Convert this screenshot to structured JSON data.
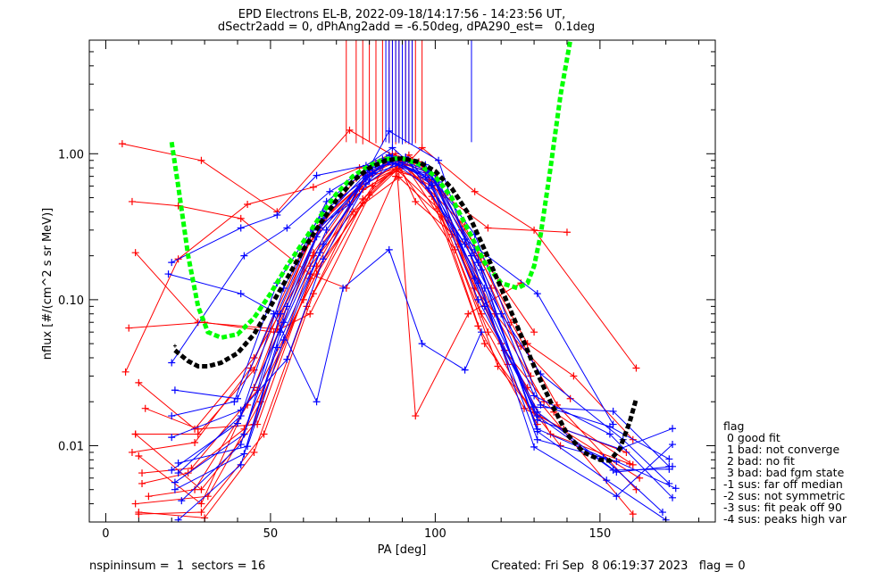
{
  "title_line1": "EPD Electrons EL-B, 2022-09-18/14:17:56 - 14:23:56 UT,",
  "title_line2": "dSectr2add = 0, dPhAng2add = -6.50deg, dPA290_est=   0.1deg",
  "footer_left": "nspininsum =  1  sectors = 16",
  "footer_right": "Created: Fri Sep  8 06:19:37 2023   flag = 0",
  "legend": {
    "title": "flag",
    "items": [
      " 0 good fit",
      " 1 bad: not converge",
      " 2 bad: no fit",
      " 3 bad: bad fgm state",
      "-1 sus: far off median",
      "-2 sus: not symmetric",
      "-3 sus: fit peak off 90",
      "-4 sus: peaks high var"
    ]
  },
  "colors": {
    "red": "#ff0000",
    "blue": "#0000ff",
    "green": "#00ff00",
    "black": "#000000"
  },
  "chart_data": {
    "type": "line",
    "xlabel": "PA [deg]",
    "ylabel": "nflux [#/(cm^2 s sr MeV)]",
    "x_scale": "linear",
    "y_scale": "log",
    "xlim": [
      -5,
      185
    ],
    "ylim": [
      0.003,
      6.0
    ],
    "x_ticks": [
      0,
      50,
      100,
      150
    ],
    "x_tick_labels": [
      "0",
      "50",
      "100",
      "150"
    ],
    "y_ticks": [
      0.01,
      0.1,
      1.0
    ],
    "y_tick_labels": [
      "0.01",
      "0.10",
      "1.00"
    ],
    "series": [
      {
        "color": "red",
        "x": [
          5,
          29,
          52,
          74,
          88,
          94,
          113,
          128,
          142,
          160
        ],
        "y": [
          1.17,
          0.9,
          0.4,
          1.45,
          0.95,
          0.47,
          0.2,
          0.05,
          0.03,
          0.011
        ]
      },
      {
        "color": "red",
        "x": [
          8,
          22,
          41,
          62,
          73,
          88,
          96,
          112,
          130,
          161
        ],
        "y": [
          0.47,
          0.44,
          0.36,
          0.15,
          0.12,
          0.7,
          1.1,
          0.55,
          0.3,
          0.034
        ]
      },
      {
        "color": "red",
        "x": [
          9,
          28,
          52,
          67,
          88,
          94,
          110,
          126
        ],
        "y": [
          0.21,
          0.07,
          0.063,
          0.38,
          1.0,
          0.016,
          0.08,
          0.13
        ]
      },
      {
        "color": "red",
        "x": [
          7,
          30,
          51,
          62,
          85,
          99,
          116,
          140
        ],
        "y": [
          0.064,
          0.07,
          0.06,
          0.08,
          0.87,
          0.6,
          0.31,
          0.29
        ]
      },
      {
        "color": "red",
        "x": [
          6,
          22,
          43,
          63,
          77,
          87,
          97,
          114,
          130
        ],
        "y": [
          0.032,
          0.19,
          0.45,
          0.59,
          0.8,
          1.0,
          0.8,
          0.2,
          0.06
        ]
      },
      {
        "color": "red",
        "x": [
          10,
          27,
          45,
          63,
          78,
          88,
          98,
          112,
          126,
          141
        ],
        "y": [
          0.027,
          0.013,
          0.04,
          0.2,
          0.57,
          0.76,
          0.66,
          0.12,
          0.048,
          0.021
        ]
      },
      {
        "color": "red",
        "x": [
          9,
          29,
          45,
          62,
          78,
          90,
          99,
          113,
          127,
          139,
          158
        ],
        "y": [
          0.012,
          0.005,
          0.014,
          0.17,
          0.49,
          0.88,
          0.51,
          0.066,
          0.018,
          0.013,
          0.009
        ]
      },
      {
        "color": "red",
        "x": [
          10,
          29,
          45,
          63,
          77,
          91,
          100,
          114,
          128,
          160
        ],
        "y": [
          0.0085,
          0.004,
          0.025,
          0.21,
          0.6,
          0.84,
          0.73,
          0.08,
          0.025,
          0.0034
        ]
      },
      {
        "color": "red",
        "x": [
          11,
          25,
          42,
          60,
          76,
          88,
          101,
          115,
          130,
          162
        ],
        "y": [
          0.0055,
          0.0065,
          0.013,
          0.1,
          0.52,
          0.79,
          0.42,
          0.05,
          0.017,
          0.006
        ]
      },
      {
        "color": "red",
        "x": [
          10,
          30,
          45,
          61,
          75,
          89,
          102,
          116,
          131
        ],
        "y": [
          0.0035,
          0.0032,
          0.009,
          0.09,
          0.4,
          0.69,
          0.37,
          0.06,
          0.014
        ]
      },
      {
        "color": "red",
        "x": [
          12,
          28,
          46,
          62,
          80,
          92,
          103,
          117,
          129
        ],
        "y": [
          0.018,
          0.013,
          0.014,
          0.14,
          0.52,
          0.98,
          0.52,
          0.12,
          0.03
        ]
      },
      {
        "color": "red",
        "x": [
          9,
          31,
          47,
          64,
          79,
          91,
          104,
          118,
          133
        ],
        "y": [
          0.004,
          0.0045,
          0.02,
          0.17,
          0.71,
          0.94,
          0.35,
          0.08,
          0.02
        ]
      },
      {
        "color": "red",
        "x": [
          8,
          27,
          44,
          60,
          77,
          90,
          105,
          120,
          135,
          159
        ],
        "y": [
          0.009,
          0.0105,
          0.034,
          0.22,
          0.58,
          0.89,
          0.28,
          0.05,
          0.012,
          0.0075
        ]
      },
      {
        "color": "red",
        "x": [
          10,
          29,
          48,
          63,
          78,
          89,
          106,
          119,
          138
        ],
        "y": [
          0.0034,
          0.0035,
          0.012,
          0.11,
          0.46,
          0.8,
          0.22,
          0.035,
          0.01
        ]
      },
      {
        "color": "red",
        "x": [
          11,
          26,
          46,
          64,
          81,
          93,
          107,
          121,
          136,
          160
        ],
        "y": [
          0.0065,
          0.007,
          0.024,
          0.15,
          0.6,
          0.9,
          0.24,
          0.045,
          0.017,
          0.0074
        ]
      },
      {
        "color": "red",
        "x": [
          13,
          27,
          43,
          63,
          80,
          95,
          108,
          122
        ],
        "y": [
          0.0045,
          0.005,
          0.019,
          0.3,
          0.7,
          0.88,
          0.3,
          0.036
        ]
      },
      {
        "color": "red",
        "x": [
          9,
          28,
          45,
          62,
          76,
          89,
          109,
          123,
          137,
          161
        ],
        "y": [
          0.012,
          0.012,
          0.033,
          0.25,
          0.68,
          0.92,
          0.32,
          0.07,
          0.019,
          0.005
        ]
      },
      {
        "color": "blue",
        "x": [
          20,
          41,
          52,
          64,
          79,
          87,
          99,
          112,
          131,
          155,
          172
        ],
        "y": [
          0.18,
          0.31,
          0.38,
          0.71,
          0.83,
          1.1,
          0.63,
          0.14,
          0.017,
          0.0066,
          0.0072
        ]
      },
      {
        "color": "blue",
        "x": [
          19,
          41,
          52,
          63,
          74,
          86,
          101,
          109,
          131,
          154
        ],
        "y": [
          0.15,
          0.11,
          0.08,
          0.3,
          0.45,
          1.43,
          0.9,
          0.26,
          0.11,
          0.014
        ]
      },
      {
        "color": "blue",
        "x": [
          20,
          42,
          55,
          68,
          84,
          91,
          109,
          120,
          132,
          157,
          171
        ],
        "y": [
          0.037,
          0.2,
          0.31,
          0.55,
          0.92,
          0.95,
          0.24,
          0.08,
          0.031,
          0.011,
          0.0055
        ]
      },
      {
        "color": "blue",
        "x": [
          21,
          40,
          51,
          64,
          72,
          86,
          96,
          109,
          114
        ],
        "y": [
          0.024,
          0.021,
          0.08,
          0.02,
          0.12,
          0.22,
          0.05,
          0.033,
          0.06
        ]
      },
      {
        "color": "blue",
        "x": [
          20,
          39,
          52,
          66,
          81,
          88,
          97,
          112,
          130,
          153,
          172
        ],
        "y": [
          0.016,
          0.02,
          0.13,
          0.4,
          0.74,
          0.92,
          0.84,
          0.22,
          0.022,
          0.012,
          0.0044
        ]
      },
      {
        "color": "blue",
        "x": [
          22,
          41,
          54,
          67,
          82,
          86,
          98,
          114,
          131,
          151,
          169
        ],
        "y": [
          0.0065,
          0.016,
          0.12,
          0.47,
          0.86,
          0.98,
          0.76,
          0.16,
          0.013,
          0.0083,
          0.0035
        ]
      },
      {
        "color": "blue",
        "x": [
          21,
          42,
          55,
          66,
          80,
          87,
          99,
          113,
          131,
          155,
          173
        ],
        "y": [
          0.0056,
          0.012,
          0.09,
          0.36,
          0.77,
          0.87,
          0.71,
          0.13,
          0.011,
          0.0078,
          0.0051
        ]
      },
      {
        "color": "blue",
        "x": [
          23,
          41,
          53,
          65,
          81,
          89,
          100,
          115,
          131,
          154,
          171
        ],
        "y": [
          0.0042,
          0.0102,
          0.08,
          0.31,
          0.73,
          0.84,
          0.67,
          0.09,
          0.016,
          0.0068,
          0.0069
        ]
      },
      {
        "color": "blue",
        "x": [
          20,
          40,
          54,
          64,
          79,
          87,
          97,
          111,
          130,
          155,
          172
        ],
        "y": [
          0.0068,
          0.0142,
          0.07,
          0.27,
          0.7,
          0.93,
          0.69,
          0.2,
          0.0098,
          0.0045,
          0.0102
        ]
      },
      {
        "color": "blue",
        "x": [
          22,
          41,
          52,
          66,
          80,
          86,
          101,
          113,
          131,
          152,
          170
        ],
        "y": [
          0.0031,
          0.0074,
          0.047,
          0.24,
          0.66,
          0.88,
          0.64,
          0.18,
          0.0125,
          0.0058,
          0.0031
        ]
      },
      {
        "color": "blue",
        "x": [
          21,
          42,
          53,
          67,
          81,
          90,
          98,
          112,
          132,
          153,
          171
        ],
        "y": [
          0.005,
          0.0088,
          0.06,
          0.3,
          0.81,
          0.87,
          0.74,
          0.28,
          0.019,
          0.0135,
          0.0081
        ]
      },
      {
        "color": "blue",
        "x": [
          20,
          41,
          55,
          66,
          79,
          88,
          98,
          115,
          131,
          156,
          172
        ],
        "y": [
          0.0114,
          0.0175,
          0.039,
          0.19,
          0.62,
          0.86,
          0.58,
          0.12,
          0.015,
          0.0095,
          0.0131
        ]
      },
      {
        "color": "blue",
        "x": [
          22,
          43,
          54,
          65,
          79,
          87,
          99,
          113,
          130,
          154,
          171
        ],
        "y": [
          0.0076,
          0.0099,
          0.053,
          0.21,
          0.68,
          0.96,
          0.61,
          0.1,
          0.0184,
          0.0172,
          0.0072
        ]
      }
    ],
    "stick_lines": [
      {
        "color": "red",
        "x": [
          73,
          76,
          78,
          80,
          82,
          84,
          86,
          87,
          88,
          89,
          91,
          92,
          93,
          94,
          96
        ]
      },
      {
        "color": "blue",
        "x": [
          85,
          86,
          87,
          88,
          89,
          90,
          91,
          92,
          93,
          111
        ]
      }
    ],
    "fit_curves": [
      {
        "color": "green",
        "style": "dashed",
        "x": [
          20,
          22,
          25,
          28,
          31,
          35,
          40,
          45,
          50,
          55,
          60,
          65,
          70,
          75,
          80,
          85,
          90,
          95,
          100,
          105,
          110,
          115,
          120,
          125,
          128,
          130,
          132,
          135,
          138,
          141
        ],
        "y": [
          1.2,
          0.6,
          0.2,
          0.09,
          0.06,
          0.055,
          0.058,
          0.075,
          0.11,
          0.17,
          0.25,
          0.37,
          0.53,
          0.7,
          0.83,
          0.92,
          0.93,
          0.85,
          0.7,
          0.5,
          0.3,
          0.18,
          0.13,
          0.12,
          0.13,
          0.17,
          0.28,
          0.8,
          2.5,
          6.0
        ]
      },
      {
        "color": "black",
        "style": "dashed",
        "x": [
          21,
          25,
          28,
          31,
          35,
          40,
          45,
          50,
          55,
          60,
          65,
          70,
          75,
          80,
          85,
          90,
          95,
          100,
          105,
          110,
          115,
          120,
          125,
          130,
          135,
          140,
          145,
          150,
          153,
          156,
          159,
          161
        ],
        "y": [
          0.045,
          0.038,
          0.035,
          0.035,
          0.037,
          0.043,
          0.058,
          0.09,
          0.14,
          0.22,
          0.33,
          0.48,
          0.65,
          0.8,
          0.9,
          0.93,
          0.88,
          0.76,
          0.58,
          0.39,
          0.22,
          0.12,
          0.065,
          0.035,
          0.02,
          0.012,
          0.009,
          0.008,
          0.0079,
          0.0095,
          0.0145,
          0.021
        ]
      }
    ]
  }
}
